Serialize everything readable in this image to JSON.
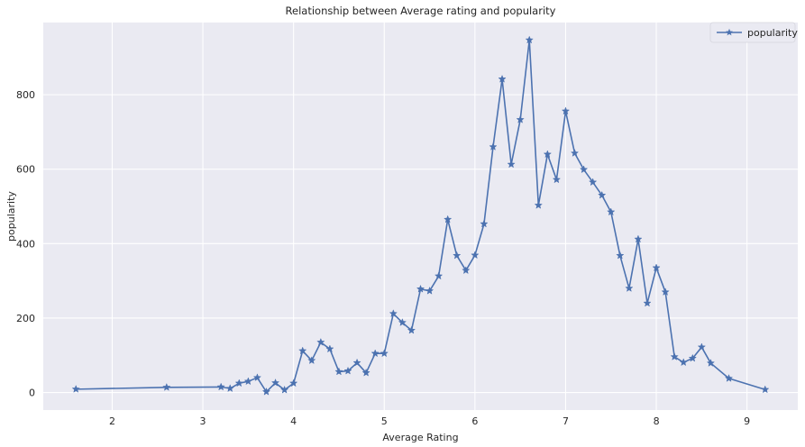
{
  "chart_data": {
    "type": "line",
    "title": "Relationship between Average rating and popularity",
    "xlabel": "Average Rating",
    "ylabel": "popularity",
    "xlim": [
      1.24,
      9.56
    ],
    "ylim": [
      -47,
      994
    ],
    "xticks": [
      2,
      3,
      4,
      5,
      6,
      7,
      8,
      9
    ],
    "yticks": [
      0,
      200,
      400,
      600,
      800
    ],
    "grid": true,
    "legend_position": "top-right",
    "series": [
      {
        "name": "popularity",
        "color": "#4c72b0",
        "marker": "star",
        "x": [
          1.6,
          2.6,
          3.2,
          3.3,
          3.4,
          3.5,
          3.6,
          3.7,
          3.8,
          3.9,
          4.0,
          4.1,
          4.2,
          4.3,
          4.4,
          4.5,
          4.6,
          4.7,
          4.8,
          4.9,
          5.0,
          5.1,
          5.2,
          5.3,
          5.4,
          5.5,
          5.6,
          5.7,
          5.8,
          5.9,
          6.0,
          6.1,
          6.2,
          6.3,
          6.4,
          6.5,
          6.6,
          6.7,
          6.8,
          6.9,
          7.0,
          7.1,
          7.2,
          7.3,
          7.4,
          7.5,
          7.6,
          7.7,
          7.8,
          7.9,
          8.0,
          8.1,
          8.2,
          8.3,
          8.4,
          8.5,
          8.6,
          8.8,
          9.2
        ],
        "y": [
          9,
          14,
          15,
          11,
          25,
          30,
          40,
          2,
          26,
          7,
          25,
          112,
          86,
          135,
          117,
          56,
          58,
          80,
          53,
          105,
          105,
          212,
          188,
          167,
          278,
          273,
          313,
          465,
          368,
          328,
          369,
          453,
          660,
          842,
          613,
          733,
          947,
          503,
          640,
          572,
          756,
          643,
          599,
          565,
          530,
          485,
          368,
          280,
          412,
          240,
          335,
          270,
          96,
          81,
          92,
          122,
          79,
          38,
          8
        ]
      }
    ]
  }
}
